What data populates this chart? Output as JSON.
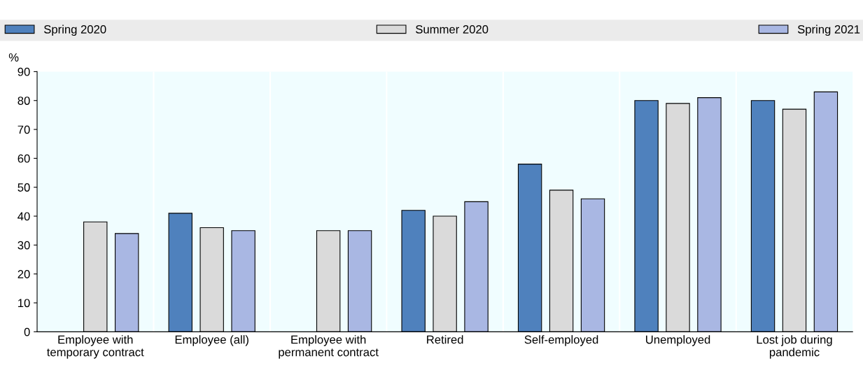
{
  "chart_data": {
    "type": "bar",
    "ylabel": "%",
    "categories": [
      "Employee with\ntemporary contract",
      "Employee (all)",
      "Employee with\npermanent contract",
      "Retired",
      "Self-employed",
      "Unemployed",
      "Lost job during\npandemic"
    ],
    "series": [
      {
        "name": "Spring 2020",
        "color": "#4f81bd",
        "values": [
          null,
          41,
          null,
          42,
          58,
          80,
          80
        ]
      },
      {
        "name": "Summer 2020",
        "color": "#dadada",
        "values": [
          38,
          36,
          35,
          40,
          49,
          79,
          77
        ]
      },
      {
        "name": "Spring 2021",
        "color": "#a9b7e3",
        "values": [
          34,
          35,
          35,
          45,
          46,
          81,
          83
        ]
      }
    ],
    "ylim": [
      0,
      90
    ],
    "yticks": [
      0,
      10,
      20,
      30,
      40,
      50,
      60,
      70,
      80,
      90
    ],
    "grid": false,
    "legend": "top"
  }
}
